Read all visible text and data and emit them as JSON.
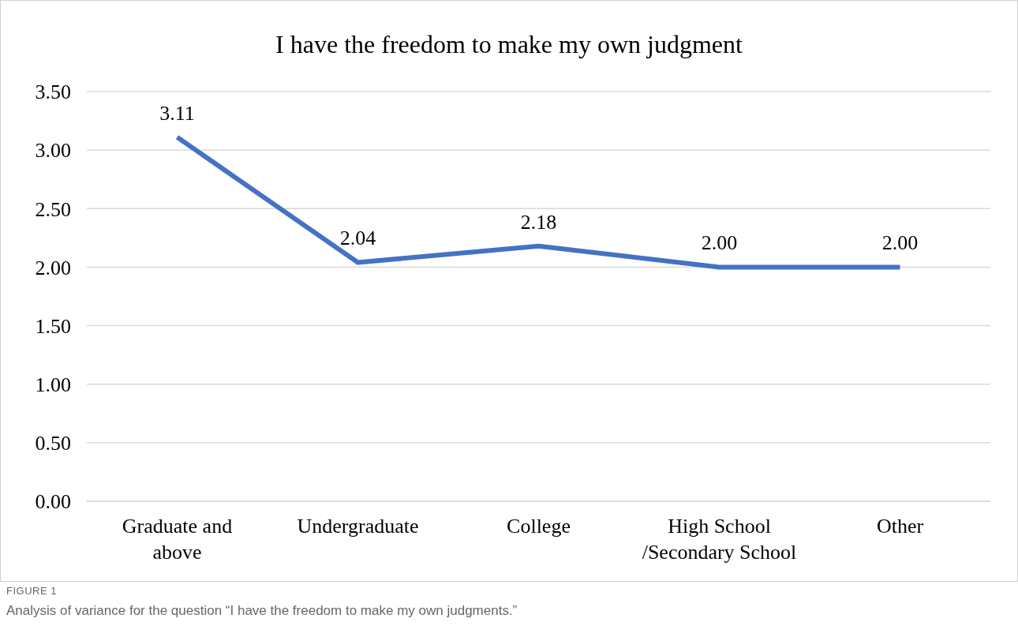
{
  "chart_data": {
    "type": "line",
    "title": "I have the freedom to make my own judgment",
    "categories": [
      "Graduate and above",
      "Undergraduate",
      "College",
      "High School /Secondary School",
      "Other"
    ],
    "values": [
      3.11,
      2.04,
      2.18,
      2.0,
      2.0
    ],
    "color": "#4472c4",
    "ylim": [
      0,
      3.5
    ],
    "yticks": [
      {
        "value": 0,
        "label": "0.00"
      },
      {
        "value": 0.5,
        "label": "0.50"
      },
      {
        "value": 1,
        "label": "1.00"
      },
      {
        "value": 1.5,
        "label": "1.50"
      },
      {
        "value": 2,
        "label": "2.00"
      },
      {
        "value": 2.5,
        "label": "2.50"
      },
      {
        "value": 3,
        "label": "3.00"
      },
      {
        "value": 3.5,
        "label": "3.50"
      }
    ],
    "grid": "y",
    "marker": "none",
    "line_style": "solid",
    "legend": false,
    "value_labels": [
      "3.11",
      "2.04",
      "2.18",
      "2.00",
      "2.00"
    ],
    "annotations": [
      "FIGURE 1",
      "Analysis of variance for the question “I have the freedom to make my own judgments.”"
    ]
  }
}
